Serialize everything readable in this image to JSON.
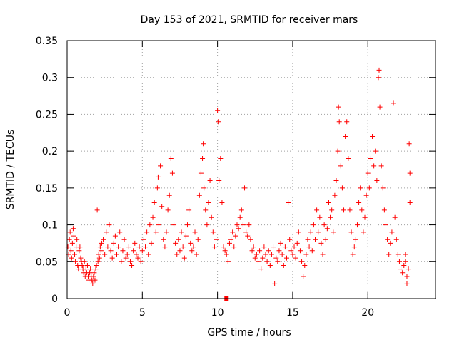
{
  "chart_data": {
    "type": "scatter",
    "title": "Day 153 of 2021, SRMTID for receiver mars",
    "xlabel": "GPS time / hours",
    "ylabel": "SRMTID / TECUs",
    "xlim": [
      0,
      24.5
    ],
    "ylim": [
      0,
      0.35
    ],
    "xticks": [
      0,
      5,
      10,
      15,
      20
    ],
    "yticks": [
      0,
      0.05,
      0.1,
      0.15,
      0.2,
      0.25,
      0.3,
      0.35
    ],
    "xtick_labels": [
      "0",
      "5",
      "10",
      "15",
      "20"
    ],
    "ytick_labels": [
      "0",
      "0.05",
      "0.1",
      "0.15",
      "0.2",
      "0.25",
      "0.3",
      "0.35"
    ],
    "grid": true,
    "marker": "+",
    "color": "#ff0000",
    "series": [
      {
        "name": "SRMTID",
        "points": [
          [
            0.05,
            0.07
          ],
          [
            0.1,
            0.06
          ],
          [
            0.15,
            0.08
          ],
          [
            0.2,
            0.09
          ],
          [
            0.25,
            0.065
          ],
          [
            0.3,
            0.055
          ],
          [
            0.35,
            0.075
          ],
          [
            0.4,
            0.095
          ],
          [
            0.45,
            0.085
          ],
          [
            0.5,
            0.06
          ],
          [
            0.55,
            0.05
          ],
          [
            0.6,
            0.07
          ],
          [
            0.65,
            0.08
          ],
          [
            0.7,
            0.045
          ],
          [
            0.75,
            0.04
          ],
          [
            0.8,
            0.065
          ],
          [
            0.85,
            0.07
          ],
          [
            0.9,
            0.055
          ],
          [
            0.95,
            0.05
          ],
          [
            1.0,
            0.045
          ],
          [
            1.05,
            0.04
          ],
          [
            1.1,
            0.035
          ],
          [
            1.15,
            0.05
          ],
          [
            1.2,
            0.03
          ],
          [
            1.25,
            0.04
          ],
          [
            1.3,
            0.035
          ],
          [
            1.35,
            0.045
          ],
          [
            1.4,
            0.03
          ],
          [
            1.45,
            0.025
          ],
          [
            1.5,
            0.035
          ],
          [
            1.55,
            0.04
          ],
          [
            1.6,
            0.03
          ],
          [
            1.65,
            0.025
          ],
          [
            1.7,
            0.02
          ],
          [
            1.75,
            0.03
          ],
          [
            1.8,
            0.035
          ],
          [
            1.85,
            0.025
          ],
          [
            1.9,
            0.04
          ],
          [
            1.95,
            0.045
          ],
          [
            2.0,
            0.12
          ],
          [
            2.05,
            0.05
          ],
          [
            2.1,
            0.06
          ],
          [
            2.15,
            0.055
          ],
          [
            2.2,
            0.07
          ],
          [
            2.25,
            0.065
          ],
          [
            2.3,
            0.075
          ],
          [
            2.4,
            0.08
          ],
          [
            2.5,
            0.06
          ],
          [
            2.6,
            0.09
          ],
          [
            2.7,
            0.07
          ],
          [
            2.8,
            0.1
          ],
          [
            2.9,
            0.065
          ],
          [
            3.0,
            0.055
          ],
          [
            3.1,
            0.075
          ],
          [
            3.2,
            0.085
          ],
          [
            3.3,
            0.06
          ],
          [
            3.4,
            0.07
          ],
          [
            3.5,
            0.09
          ],
          [
            3.6,
            0.05
          ],
          [
            3.7,
            0.065
          ],
          [
            3.8,
            0.08
          ],
          [
            3.9,
            0.055
          ],
          [
            4.0,
            0.06
          ],
          [
            4.1,
            0.07
          ],
          [
            4.2,
            0.05
          ],
          [
            4.3,
            0.045
          ],
          [
            4.4,
            0.065
          ],
          [
            4.5,
            0.075
          ],
          [
            4.6,
            0.06
          ],
          [
            4.7,
            0.055
          ],
          [
            4.8,
            0.07
          ],
          [
            4.9,
            0.05
          ],
          [
            5.0,
            0.065
          ],
          [
            5.1,
            0.08
          ],
          [
            5.2,
            0.07
          ],
          [
            5.3,
            0.09
          ],
          [
            5.4,
            0.06
          ],
          [
            5.5,
            0.1
          ],
          [
            5.6,
            0.075
          ],
          [
            5.7,
            0.11
          ],
          [
            5.8,
            0.13
          ],
          [
            5.9,
            0.09
          ],
          [
            6.0,
            0.15
          ],
          [
            6.05,
            0.165
          ],
          [
            6.1,
            0.1
          ],
          [
            6.2,
            0.18
          ],
          [
            6.3,
            0.125
          ],
          [
            6.4,
            0.08
          ],
          [
            6.5,
            0.07
          ],
          [
            6.6,
            0.09
          ],
          [
            6.7,
            0.12
          ],
          [
            6.8,
            0.14
          ],
          [
            6.9,
            0.19
          ],
          [
            7.0,
            0.17
          ],
          [
            7.1,
            0.1
          ],
          [
            7.2,
            0.075
          ],
          [
            7.3,
            0.06
          ],
          [
            7.4,
            0.08
          ],
          [
            7.5,
            0.065
          ],
          [
            7.6,
            0.09
          ],
          [
            7.7,
            0.07
          ],
          [
            7.8,
            0.055
          ],
          [
            7.9,
            0.085
          ],
          [
            8.0,
            0.1
          ],
          [
            8.1,
            0.12
          ],
          [
            8.2,
            0.075
          ],
          [
            8.3,
            0.065
          ],
          [
            8.4,
            0.07
          ],
          [
            8.5,
            0.09
          ],
          [
            8.6,
            0.06
          ],
          [
            8.7,
            0.08
          ],
          [
            8.8,
            0.14
          ],
          [
            8.9,
            0.17
          ],
          [
            9.0,
            0.19
          ],
          [
            9.05,
            0.21
          ],
          [
            9.1,
            0.15
          ],
          [
            9.2,
            0.12
          ],
          [
            9.3,
            0.1
          ],
          [
            9.4,
            0.13
          ],
          [
            9.5,
            0.16
          ],
          [
            9.6,
            0.11
          ],
          [
            9.7,
            0.09
          ],
          [
            9.8,
            0.07
          ],
          [
            9.9,
            0.08
          ],
          [
            10.0,
            0.255
          ],
          [
            10.05,
            0.24
          ],
          [
            10.1,
            0.16
          ],
          [
            10.2,
            0.19
          ],
          [
            10.3,
            0.13
          ],
          [
            10.4,
            0.07
          ],
          [
            10.5,
            0.065
          ],
          [
            10.6,
            0.06
          ],
          [
            10.7,
            0.05
          ],
          [
            10.8,
            0.075
          ],
          [
            10.9,
            0.08
          ],
          [
            11.0,
            0.09
          ],
          [
            11.1,
            0.07
          ],
          [
            11.2,
            0.085
          ],
          [
            11.3,
            0.1
          ],
          [
            11.4,
            0.095
          ],
          [
            11.5,
            0.11
          ],
          [
            11.6,
            0.12
          ],
          [
            11.7,
            0.1
          ],
          [
            11.8,
            0.15
          ],
          [
            11.9,
            0.09
          ],
          [
            12.0,
            0.085
          ],
          [
            12.1,
            0.1
          ],
          [
            12.2,
            0.08
          ],
          [
            12.3,
            0.065
          ],
          [
            12.4,
            0.07
          ],
          [
            12.5,
            0.055
          ],
          [
            12.6,
            0.06
          ],
          [
            12.7,
            0.05
          ],
          [
            12.8,
            0.065
          ],
          [
            12.9,
            0.04
          ],
          [
            13.0,
            0.055
          ],
          [
            13.1,
            0.07
          ],
          [
            13.2,
            0.06
          ],
          [
            13.3,
            0.05
          ],
          [
            13.4,
            0.065
          ],
          [
            13.5,
            0.045
          ],
          [
            13.6,
            0.06
          ],
          [
            13.7,
            0.07
          ],
          [
            13.8,
            0.02
          ],
          [
            13.9,
            0.055
          ],
          [
            14.0,
            0.05
          ],
          [
            14.1,
            0.065
          ],
          [
            14.2,
            0.075
          ],
          [
            14.3,
            0.06
          ],
          [
            14.4,
            0.045
          ],
          [
            14.5,
            0.07
          ],
          [
            14.6,
            0.055
          ],
          [
            14.7,
            0.13
          ],
          [
            14.8,
            0.08
          ],
          [
            14.9,
            0.065
          ],
          [
            15.0,
            0.06
          ],
          [
            15.1,
            0.07
          ],
          [
            15.2,
            0.055
          ],
          [
            15.3,
            0.075
          ],
          [
            15.4,
            0.09
          ],
          [
            15.5,
            0.065
          ],
          [
            15.6,
            0.05
          ],
          [
            15.7,
            0.03
          ],
          [
            15.8,
            0.045
          ],
          [
            15.9,
            0.06
          ],
          [
            16.0,
            0.08
          ],
          [
            16.1,
            0.07
          ],
          [
            16.2,
            0.09
          ],
          [
            16.3,
            0.065
          ],
          [
            16.4,
            0.1
          ],
          [
            16.5,
            0.08
          ],
          [
            16.6,
            0.12
          ],
          [
            16.7,
            0.09
          ],
          [
            16.8,
            0.11
          ],
          [
            16.9,
            0.075
          ],
          [
            17.0,
            0.06
          ],
          [
            17.1,
            0.1
          ],
          [
            17.2,
            0.08
          ],
          [
            17.3,
            0.095
          ],
          [
            17.4,
            0.13
          ],
          [
            17.5,
            0.11
          ],
          [
            17.6,
            0.12
          ],
          [
            17.7,
            0.09
          ],
          [
            17.8,
            0.14
          ],
          [
            17.9,
            0.16
          ],
          [
            18.0,
            0.2
          ],
          [
            18.05,
            0.26
          ],
          [
            18.1,
            0.24
          ],
          [
            18.2,
            0.18
          ],
          [
            18.3,
            0.15
          ],
          [
            18.4,
            0.12
          ],
          [
            18.5,
            0.22
          ],
          [
            18.6,
            0.24
          ],
          [
            18.7,
            0.19
          ],
          [
            18.8,
            0.12
          ],
          [
            18.9,
            0.09
          ],
          [
            19.0,
            0.06
          ],
          [
            19.1,
            0.07
          ],
          [
            19.2,
            0.08
          ],
          [
            19.3,
            0.1
          ],
          [
            19.4,
            0.13
          ],
          [
            19.5,
            0.15
          ],
          [
            19.6,
            0.12
          ],
          [
            19.7,
            0.09
          ],
          [
            19.8,
            0.11
          ],
          [
            19.9,
            0.14
          ],
          [
            20.0,
            0.17
          ],
          [
            20.1,
            0.15
          ],
          [
            20.2,
            0.19
          ],
          [
            20.3,
            0.22
          ],
          [
            20.4,
            0.18
          ],
          [
            20.5,
            0.2
          ],
          [
            20.6,
            0.16
          ],
          [
            20.7,
            0.3
          ],
          [
            20.75,
            0.31
          ],
          [
            20.8,
            0.26
          ],
          [
            20.9,
            0.18
          ],
          [
            21.0,
            0.15
          ],
          [
            21.1,
            0.12
          ],
          [
            21.2,
            0.1
          ],
          [
            21.3,
            0.08
          ],
          [
            21.4,
            0.06
          ],
          [
            21.5,
            0.075
          ],
          [
            21.6,
            0.09
          ],
          [
            21.7,
            0.265
          ],
          [
            21.8,
            0.11
          ],
          [
            21.9,
            0.08
          ],
          [
            22.0,
            0.06
          ],
          [
            22.1,
            0.05
          ],
          [
            22.2,
            0.04
          ],
          [
            22.3,
            0.035
          ],
          [
            22.4,
            0.045
          ],
          [
            22.5,
            0.05
          ],
          [
            22.6,
            0.03
          ],
          [
            22.7,
            0.04
          ],
          [
            22.75,
            0.21
          ],
          [
            22.8,
            0.17
          ],
          [
            22.8,
            0.13
          ],
          [
            22.6,
            0.02
          ],
          [
            22.5,
            0.06
          ]
        ]
      }
    ],
    "highlight_point": [
      10.6,
      0
    ]
  }
}
